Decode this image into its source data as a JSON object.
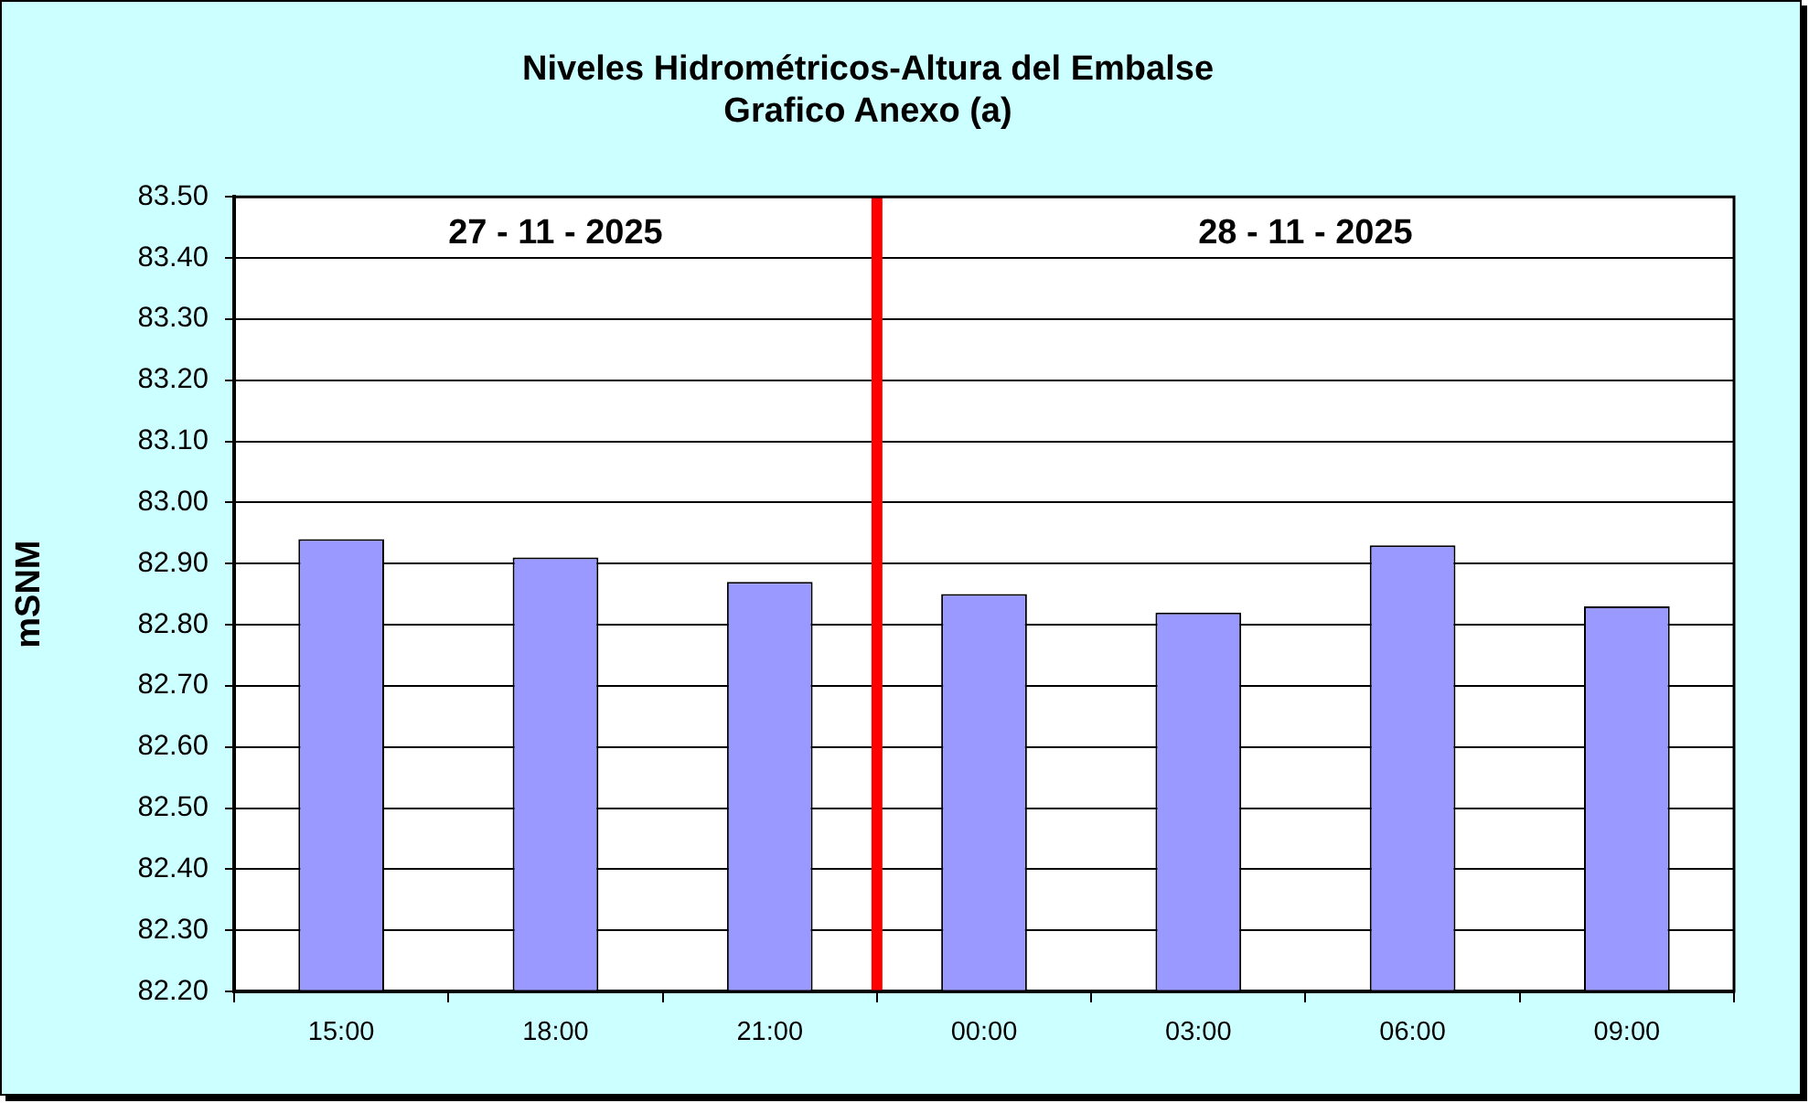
{
  "chart_data": {
    "type": "bar",
    "title": "Niveles Hidrométricos-Altura del Embalse",
    "subtitle": "Grafico Anexo (a)",
    "ylabel": "mSNM",
    "x": [
      "2025-11-27T15:00",
      "2025-11-27T18:00",
      "2025-11-27T21:00",
      "2025-11-28T00:00",
      "2025-11-28T03:00",
      "2025-11-28T06:00",
      "2025-11-28T09:00"
    ],
    "values": [
      82.94,
      82.91,
      82.87,
      82.85,
      82.82,
      82.93,
      82.83
    ],
    "color": "#9999ff",
    "xlim": [
      "2025-11-27T13:30",
      "2025-11-28T10:30"
    ],
    "xticks": [
      {
        "value": "2025-11-27T13:30",
        "label": null
      },
      {
        "value": "2025-11-27T15:00",
        "label": "15:00"
      },
      {
        "value": "2025-11-27T16:30",
        "label": null
      },
      {
        "value": "2025-11-27T18:00",
        "label": "18:00"
      },
      {
        "value": "2025-11-27T19:30",
        "label": null
      },
      {
        "value": "2025-11-27T21:00",
        "label": "21:00"
      },
      {
        "value": "2025-11-27T22:30",
        "label": null
      },
      {
        "value": "2025-11-28T00:00",
        "label": "00:00"
      },
      {
        "value": "2025-11-28T01:30",
        "label": null
      },
      {
        "value": "2025-11-28T03:00",
        "label": "03:00"
      },
      {
        "value": "2025-11-28T04:30",
        "label": null
      },
      {
        "value": "2025-11-28T06:00",
        "label": "06:00"
      },
      {
        "value": "2025-11-28T07:30",
        "label": null
      },
      {
        "value": "2025-11-28T09:00",
        "label": "09:00"
      },
      {
        "value": "2025-11-28T10:30",
        "label": null
      }
    ],
    "ylim": [
      82.2,
      83.5
    ],
    "yticks": [
      {
        "value": 82.2,
        "label": "82.20"
      },
      {
        "value": 82.3,
        "label": "82.30"
      },
      {
        "value": 82.4,
        "label": "82.40"
      },
      {
        "value": 82.5,
        "label": "82.50"
      },
      {
        "value": 82.6,
        "label": "82.60"
      },
      {
        "value": 82.7,
        "label": "82.70"
      },
      {
        "value": 82.8,
        "label": "82.80"
      },
      {
        "value": 82.9,
        "label": "82.90"
      },
      {
        "value": 83.0,
        "label": "83.00"
      },
      {
        "value": 83.1,
        "label": "83.10"
      },
      {
        "value": 83.2,
        "label": "83.20"
      },
      {
        "value": 83.3,
        "label": "83.30"
      },
      {
        "value": 83.4,
        "label": "83.40"
      },
      {
        "value": 83.5,
        "label": "83.50"
      }
    ],
    "grid": "y",
    "ref_lines": [
      {
        "axis": "x",
        "value": "2025-11-27T22:30",
        "color": "#ff0000"
      }
    ],
    "annotations": [
      "27 - 11 - 2025",
      "28 - 11 - 2025"
    ]
  }
}
